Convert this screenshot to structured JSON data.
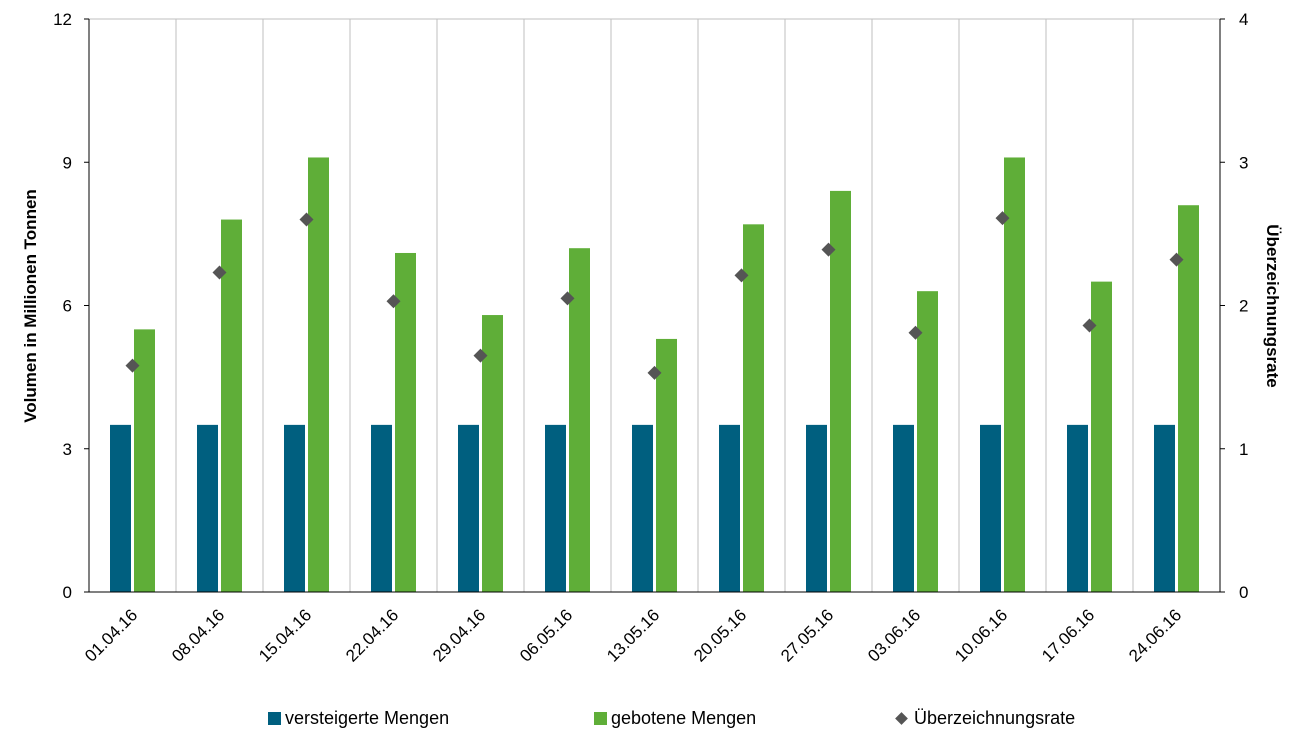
{
  "chart_data": {
    "type": "bar",
    "categories": [
      "01.04.16",
      "08.04.16",
      "15.04.16",
      "22.04.16",
      "29.04.16",
      "06.05.16",
      "13.05.16",
      "20.05.16",
      "27.05.16",
      "03.06.16",
      "10.06.16",
      "17.06.16",
      "24.06.16"
    ],
    "series": [
      {
        "name": "versteigerte Mengen",
        "type": "bar",
        "axis": "left",
        "color": "#005f7f",
        "values": [
          3.5,
          3.5,
          3.5,
          3.5,
          3.5,
          3.5,
          3.5,
          3.5,
          3.5,
          3.5,
          3.5,
          3.5,
          3.5
        ]
      },
      {
        "name": "gebotene Mengen",
        "type": "bar",
        "axis": "left",
        "color": "#5fae38",
        "values": [
          5.5,
          7.8,
          9.1,
          7.1,
          5.8,
          7.2,
          5.3,
          7.7,
          8.4,
          6.3,
          9.1,
          6.5,
          8.1
        ]
      },
      {
        "name": "Überzeichnungsrate",
        "type": "scatter",
        "marker": "diamond",
        "axis": "right",
        "color": "#555555",
        "values": [
          1.58,
          2.23,
          2.6,
          2.03,
          1.65,
          2.05,
          1.53,
          2.21,
          2.39,
          1.81,
          2.61,
          1.86,
          2.32
        ]
      }
    ],
    "ylabel": "Volumen in Millionen Tonnen",
    "y2label": "Überzeichnungsrate",
    "ylim": [
      0,
      12
    ],
    "y2lim": [
      0,
      4
    ],
    "yticks": [
      "0",
      "3",
      "6",
      "9",
      "12"
    ],
    "y2ticks": [
      "0",
      "1",
      "2",
      "3",
      "4"
    ],
    "grid": "vertical",
    "legend_position": "bottom"
  }
}
